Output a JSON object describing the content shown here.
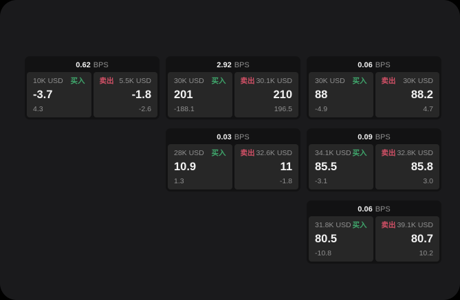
{
  "labels": {
    "bps_unit": "BPS",
    "buy": "买入",
    "sell": "卖出"
  },
  "colors": {
    "outer-bg": "#000000",
    "window-bg": "#1a1a1c",
    "card-bg": "#121213",
    "panel-bg": "#272727",
    "text-primary": "#f2f2f2",
    "text-muted": "#8f8f8f",
    "buy": "#3fa56b",
    "sell": "#d15066"
  },
  "cards": [
    {
      "row": 1,
      "col": 1,
      "bps": "0.62",
      "buy": {
        "notional": "10K USD",
        "price": "-3.7",
        "delta": "4.3"
      },
      "sell": {
        "notional": "5.5K USD",
        "price": "-1.8",
        "delta": "-2.6"
      }
    },
    {
      "row": 1,
      "col": 2,
      "bps": "2.92",
      "buy": {
        "notional": "30K USD",
        "price": "201",
        "delta": "-188.1"
      },
      "sell": {
        "notional": "30.1K USD",
        "price": "210",
        "delta": "196.5"
      }
    },
    {
      "row": 1,
      "col": 3,
      "bps": "0.06",
      "buy": {
        "notional": "30K USD",
        "price": "88",
        "delta": "-4.9"
      },
      "sell": {
        "notional": "30K USD",
        "price": "88.2",
        "delta": "4.7"
      }
    },
    {
      "row": 2,
      "col": 2,
      "bps": "0.03",
      "buy": {
        "notional": "28K USD",
        "price": "10.9",
        "delta": "1.3"
      },
      "sell": {
        "notional": "32.6K USD",
        "price": "11",
        "delta": "-1.8"
      }
    },
    {
      "row": 2,
      "col": 3,
      "bps": "0.09",
      "buy": {
        "notional": "34.1K USD",
        "price": "85.5",
        "delta": "-3.1"
      },
      "sell": {
        "notional": "32.8K USD",
        "price": "85.8",
        "delta": "3.0"
      }
    },
    {
      "row": 3,
      "col": 3,
      "bps": "0.06",
      "buy": {
        "notional": "31.8K USD",
        "price": "80.5",
        "delta": "-10.8"
      },
      "sell": {
        "notional": "39.1K USD",
        "price": "80.7",
        "delta": "10.2"
      }
    }
  ]
}
